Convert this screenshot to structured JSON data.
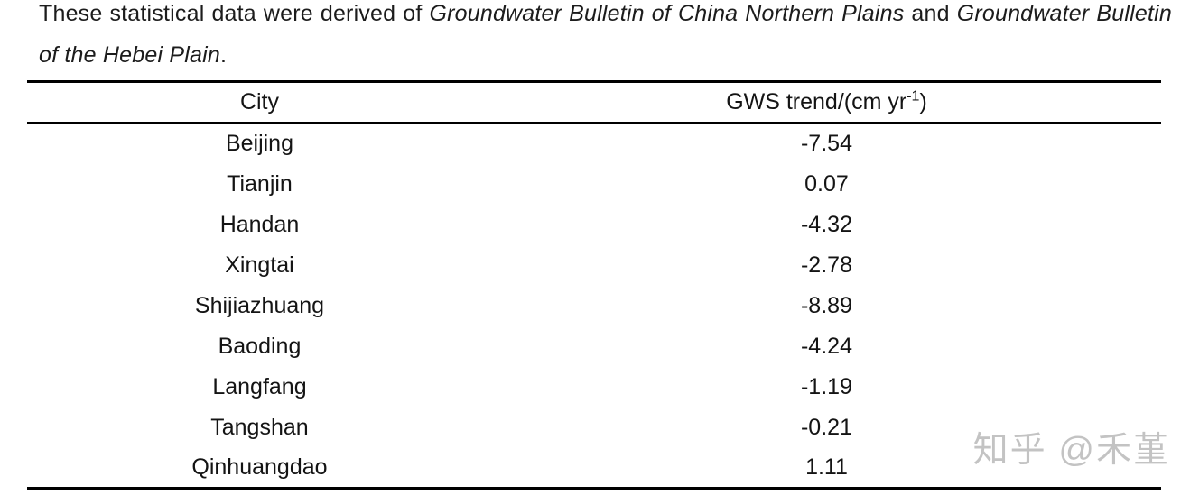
{
  "caption": {
    "seg_intro": "These statistical data were derived of ",
    "seg_source1": "Groundwater Bulletin of China Northern Plains",
    "seg_and": " and ",
    "seg_source2": "Groundwater Bulletin of the Hebei Plain",
    "seg_period": "."
  },
  "table": {
    "header_city": "City",
    "header_trend_prefix": "GWS trend/(cm yr",
    "header_trend_sup": "-1",
    "header_trend_suffix": ")",
    "rows": [
      {
        "city": "Beijing",
        "trend": "-7.54"
      },
      {
        "city": "Tianjin",
        "trend": "0.07"
      },
      {
        "city": "Handan",
        "trend": "-4.32"
      },
      {
        "city": "Xingtai",
        "trend": "-2.78"
      },
      {
        "city": "Shijiazhuang",
        "trend": "-8.89"
      },
      {
        "city": "Baoding",
        "trend": "-4.24"
      },
      {
        "city": "Langfang",
        "trend": "-1.19"
      },
      {
        "city": "Tangshan",
        "trend": "-0.21"
      },
      {
        "city": "Qinhuangdao",
        "trend": "1.11"
      }
    ]
  },
  "watermark": {
    "text": "知乎 @禾堇"
  },
  "colors": {
    "background": "#ffffff",
    "text": "#1c1c1c",
    "rule": "#000000",
    "watermark": "#c3c3c3"
  }
}
